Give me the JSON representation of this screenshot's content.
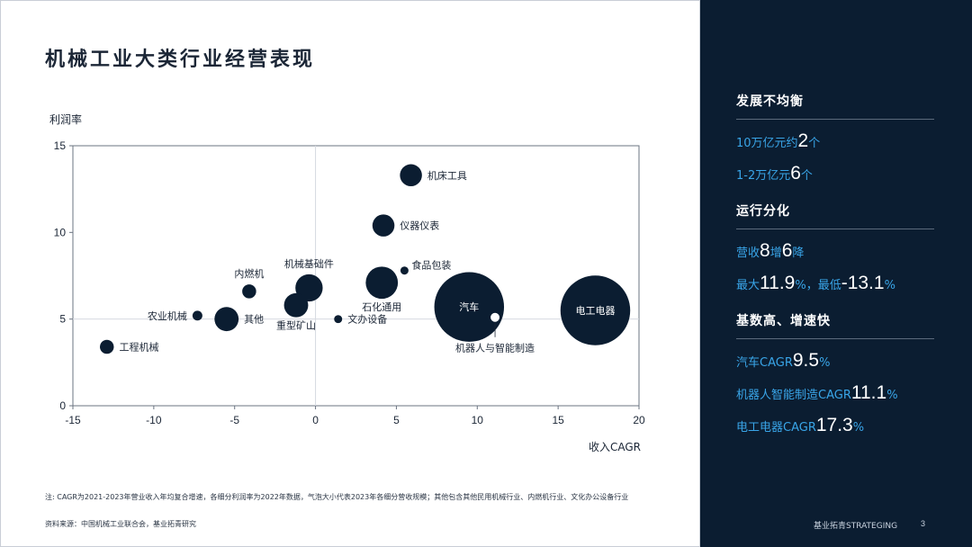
{
  "page": {
    "title": "机械工业大类行业经营表现",
    "page_number": "3",
    "brand": "基业拓青STRATEGING"
  },
  "colors": {
    "bubble": "#0b1d31",
    "panel": "#0b1d31",
    "accent": "#39a5e8"
  },
  "chart_data": {
    "type": "scatter",
    "title": "",
    "xlabel": "收入CAGR",
    "ylabel": "利润率",
    "xlim": [
      -15,
      20
    ],
    "ylim": [
      0,
      15
    ],
    "x_ticks": [
      "-15",
      "-10",
      "-5",
      "0",
      "5",
      "10",
      "15",
      "20"
    ],
    "y_ticks": [
      "0",
      "5",
      "10",
      "15"
    ],
    "grid": "reference lines at x=0 and y=5",
    "points": [
      {
        "name": "机床工具",
        "x": 5.9,
        "y": 13.3,
        "size": 1.5
      },
      {
        "name": "仪器仪表",
        "x": 4.2,
        "y": 10.4,
        "size": 1.5
      },
      {
        "name": "食品包装",
        "x": 5.5,
        "y": 7.8,
        "size": 0.2
      },
      {
        "name": "机械基础件",
        "x": -0.4,
        "y": 6.8,
        "size": 2.3
      },
      {
        "name": "石化通用",
        "x": 4.1,
        "y": 7.1,
        "size": 3.2
      },
      {
        "name": "内燃机",
        "x": -4.1,
        "y": 6.6,
        "size": 0.6
      },
      {
        "name": "农业机械",
        "x": -7.3,
        "y": 5.2,
        "size": 0.3
      },
      {
        "name": "其他",
        "x": -5.5,
        "y": 5.0,
        "size": 1.8
      },
      {
        "name": "重型矿山",
        "x": -1.2,
        "y": 5.8,
        "size": 1.8
      },
      {
        "name": "文办设备",
        "x": 1.4,
        "y": 5.0,
        "size": 0.2
      },
      {
        "name": "工程机械",
        "x": -12.9,
        "y": 3.4,
        "size": 0.6
      },
      {
        "name": "汽车",
        "x": 9.5,
        "y": 5.7,
        "size": 15.0
      },
      {
        "name": "机器人与智能制造",
        "x": 11.1,
        "y": 5.1,
        "size": 0.3,
        "hollow": true
      },
      {
        "name": "电工电器",
        "x": 17.3,
        "y": 5.5,
        "size": 15.0
      }
    ]
  },
  "note": "注:  CAGR为2021-2023年营业收入年均复合增速，各细分利润率为2022年数据，气泡大小代表2023年各细分营收规模；其他包含其他民用机械行业、内燃机行业、文化办公设备行业",
  "source": "资料来源：中国机械工业联合会，基业拓青研究",
  "sidebar": {
    "sections": [
      {
        "heading": "发展不均衡",
        "lines": [
          {
            "prefix": "10万亿元约",
            "value": "2",
            "suffix": "个"
          },
          {
            "prefix": "1-2万亿元",
            "value": "6",
            "suffix": "个"
          }
        ]
      },
      {
        "heading": "运行分化",
        "lines": [
          {
            "prefix": "营收",
            "value": "8",
            "middle": "增",
            "value2": "6",
            "suffix": "降"
          },
          {
            "prefix": "最大",
            "value": "11.9",
            "middle": "%，最低",
            "value2": "-13.1",
            "suffix": "%"
          }
        ]
      },
      {
        "heading": "基数高、增速快",
        "lines": [
          {
            "prefix": "汽车CAGR",
            "value": "9.5",
            "suffix": "%"
          },
          {
            "prefix": "机器人智能制造CAGR",
            "value": "11.1",
            "suffix": "%"
          },
          {
            "prefix": "电工电器CAGR",
            "value": "17.3",
            "suffix": "%"
          }
        ]
      }
    ]
  }
}
